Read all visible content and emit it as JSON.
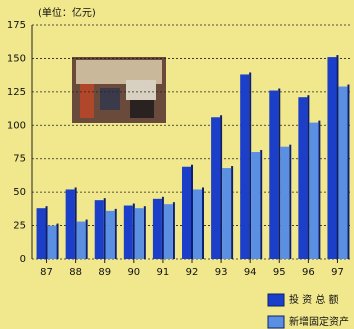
{
  "chart_data": {
    "type": "bar",
    "unit_label": "(单位：亿元)",
    "categories": [
      "87",
      "88",
      "89",
      "90",
      "91",
      "92",
      "93",
      "94",
      "95",
      "96",
      "97"
    ],
    "series": [
      {
        "name": "投 资 总 额",
        "color": "#1c3fc9",
        "values": [
          38,
          52,
          44,
          40,
          45,
          69,
          106,
          138,
          126,
          121,
          151
        ]
      },
      {
        "name": "新增固定资产",
        "color": "#5b8fe2",
        "values": [
          25,
          28,
          36,
          38,
          41,
          52,
          68,
          80,
          84,
          102,
          129
        ]
      }
    ],
    "ylim": [
      0,
      175
    ],
    "yticks": [
      0,
      25,
      50,
      75,
      100,
      125,
      150,
      175
    ],
    "grid": true
  }
}
